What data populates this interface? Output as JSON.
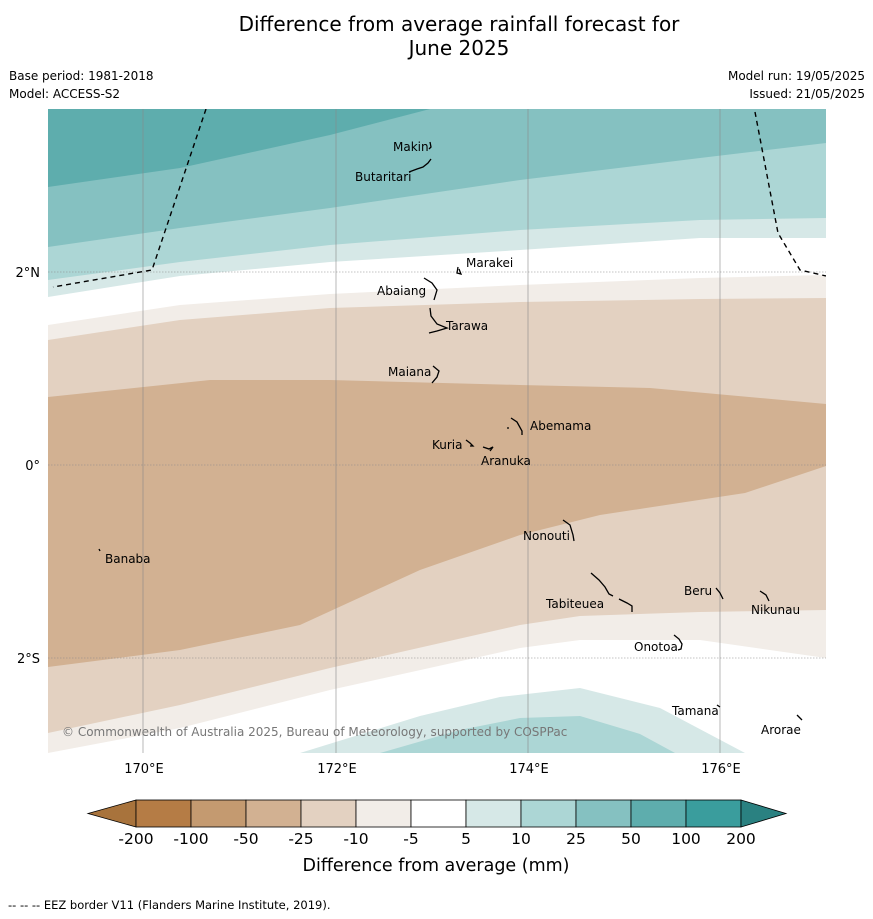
{
  "title_line1": "Difference from average rainfall forecast for",
  "title_line2": "June 2025",
  "base_period": "Base period: 1981-2018",
  "model": "Model: ACCESS-S2",
  "model_run": "Model run: 19/05/2025",
  "issued": "Issued: 21/05/2025",
  "copyright": "© Commonwealth of Australia 2025, Bureau of Meteorology, supported by COSPPac",
  "lat_labels": [
    "2°N",
    "0°",
    "2°S"
  ],
  "lon_labels": [
    "170°E",
    "172°E",
    "174°E",
    "176°E"
  ],
  "places": [
    "Makin",
    "Butaritari",
    "Marakei",
    "Abaiang",
    "Tarawa",
    "Maiana",
    "Abemama",
    "Kuria",
    "Aranuka",
    "Nonouti",
    "Banaba",
    "Tabiteuea",
    "Beru",
    "Nikunau",
    "Onotoa",
    "Tamana",
    "Arorae"
  ],
  "legend": {
    "title": "Difference from average (mm)",
    "ticks": [
      "-200",
      "-100",
      "-50",
      "-25",
      "-10",
      "-5",
      "5",
      "10",
      "25",
      "50",
      "100",
      "200"
    ],
    "colors": [
      "#a8733c",
      "#b57c45",
      "#c49a70",
      "#d2b192",
      "#e3d1c1",
      "#f2ede8",
      "#ffffff",
      "#d6e8e7",
      "#acd6d5",
      "#85c1c1",
      "#5eadad",
      "#3a9d9d",
      "#2a8181"
    ]
  },
  "footer": "--  --  -- EEZ border V11 (Flanders Marine Institute, 2019)."
}
